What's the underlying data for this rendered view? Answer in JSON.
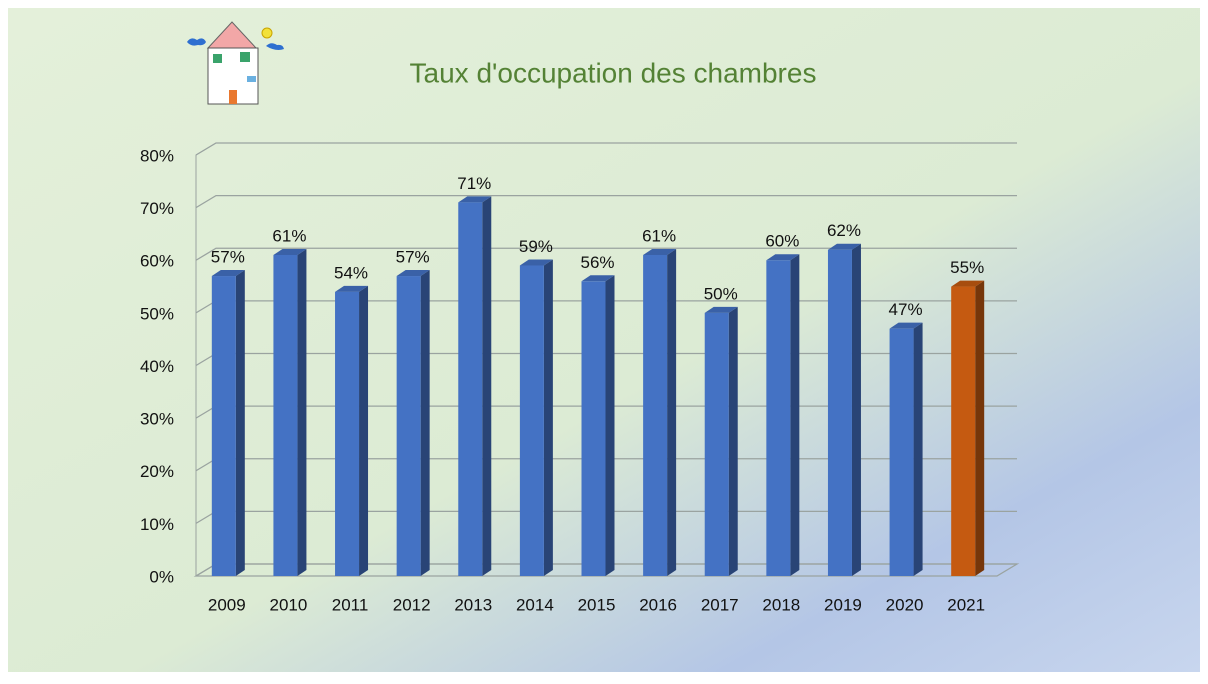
{
  "chart_data": {
    "type": "bar3d",
    "title": "Taux d'occupation des chambres",
    "categories": [
      "2009",
      "2010",
      "2011",
      "2012",
      "2013",
      "2014",
      "2015",
      "2016",
      "2017",
      "2018",
      "2019",
      "2020",
      "2021"
    ],
    "values": [
      57,
      61,
      54,
      57,
      71,
      59,
      56,
      61,
      50,
      60,
      62,
      47,
      55
    ],
    "value_labels": [
      "57%",
      "61%",
      "54%",
      "57%",
      "71%",
      "59%",
      "56%",
      "61%",
      "50%",
      "60%",
      "62%",
      "47%",
      "55%"
    ],
    "colors": [
      "#4472c4",
      "#4472c4",
      "#4472c4",
      "#4472c4",
      "#4472c4",
      "#4472c4",
      "#4472c4",
      "#4472c4",
      "#4472c4",
      "#4472c4",
      "#4472c4",
      "#4472c4",
      "#c55a11"
    ],
    "ylim": [
      0,
      80
    ],
    "yticks": [
      {
        "value": 0,
        "label": "0%"
      },
      {
        "value": 10,
        "label": "10%"
      },
      {
        "value": 20,
        "label": "20%"
      },
      {
        "value": 30,
        "label": "30%"
      },
      {
        "value": 40,
        "label": "40%"
      },
      {
        "value": 50,
        "label": "50%"
      },
      {
        "value": 60,
        "label": "60%"
      },
      {
        "value": 70,
        "label": "70%"
      },
      {
        "value": 80,
        "label": "80%"
      }
    ],
    "grid": true
  }
}
